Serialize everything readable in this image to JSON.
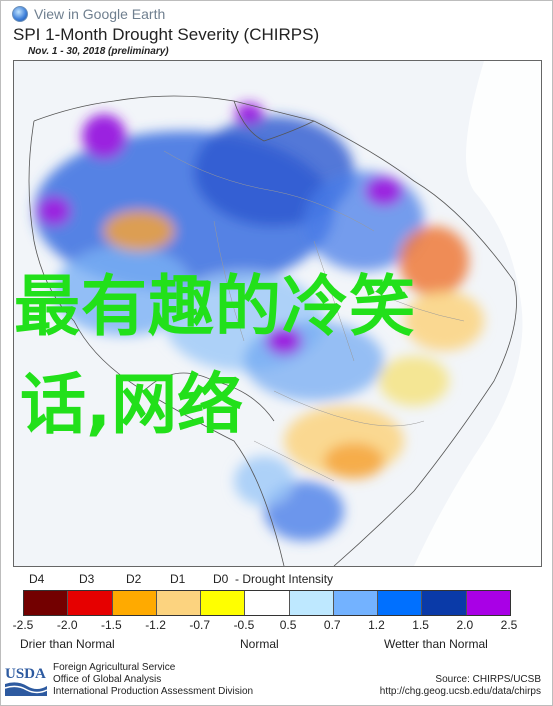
{
  "header": {
    "google_earth_link": "View in Google Earth",
    "title": "SPI 1-Month Drought Severity (CHIRPS)",
    "subtitle": "Nov. 1 - 30, 2018 (preliminary)"
  },
  "overlay_text": {
    "line1": "最有趣的冷笑",
    "line2": "话,网络",
    "color": "#22e01a"
  },
  "legend": {
    "categories": [
      "D4",
      "D3",
      "D2",
      "D1",
      "D0"
    ],
    "category_caption": "- Drought Intensity",
    "colors": [
      "#730000",
      "#e60000",
      "#ffaa00",
      "#fcd37f",
      "#ffff00",
      "#ffffff",
      "#bee8ff",
      "#73b2ff",
      "#0070ff",
      "#0a3aa8",
      "#a900e6"
    ],
    "ticks": [
      "-2.5",
      "-2.0",
      "-1.5",
      "-1.2",
      "-0.7",
      "-0.5",
      "0.5",
      "0.7",
      "1.2",
      "1.5",
      "2.0",
      "2.5"
    ],
    "left_label": "Drier than Normal",
    "center_label": "Normal",
    "right_label": "Wetter than Normal"
  },
  "footer": {
    "usda_logo": "USDA",
    "agency_lines": [
      "Foreign Agricultural Service",
      "Office of Global Analysis",
      "International Production Assessment Division"
    ],
    "source_line1": "Source: CHIRPS/UCSB",
    "source_line2": "http://chg.geog.ucsb.edu/data/chirps"
  }
}
